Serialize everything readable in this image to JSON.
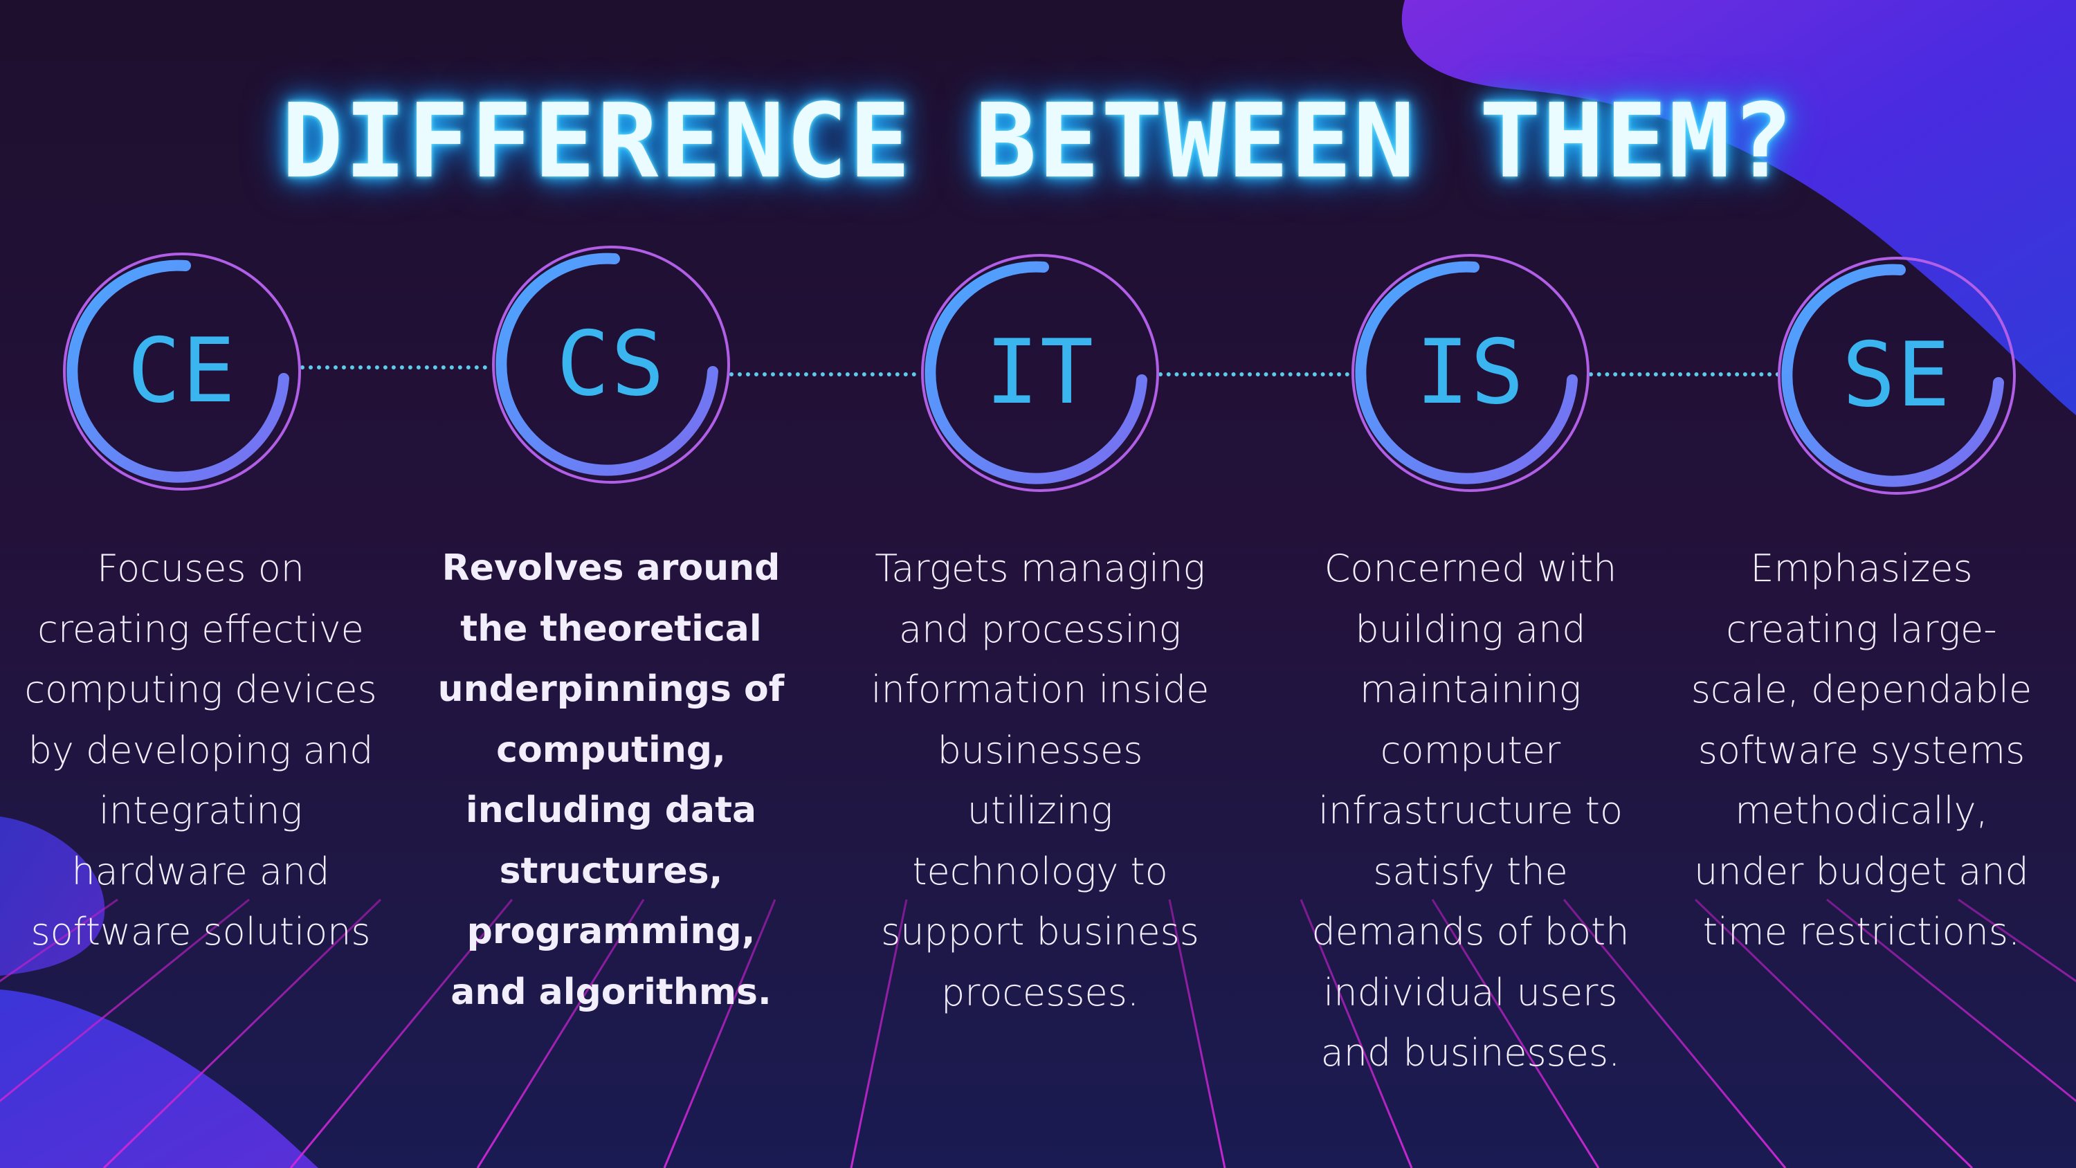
{
  "title": "DIFFERENCE BETWEEN THEM?",
  "colors": {
    "title_glow": "#35c6ff",
    "ring_outer": "#b15fe6",
    "ring_arc_start": "#4aa8ff",
    "ring_arc_end": "#7a6cf0",
    "abbr_text": "#3ab5f0",
    "connector": "#5ecbe8",
    "grid_line": "#b01fc4",
    "blob": "#4a2be0"
  },
  "fields": [
    {
      "abbr": "CE",
      "description": "Focuses on creating effective computing devices by developing and integrating hardware and software solutions"
    },
    {
      "abbr": "CS",
      "description": "Revolves around the theoretical underpinnings of computing, including data structures, programming, and algorithms."
    },
    {
      "abbr": "IT",
      "description": "Targets managing and processing information inside businesses utilizing technology to support business processes."
    },
    {
      "abbr": "IS",
      "description": "Concerned with building and maintaining computer infrastructure to satisfy the demands of both individual users and businesses."
    },
    {
      "abbr": "SE",
      "description": "Emphasizes creating large-scale, dependable software systems methodically, under budget and time restrictions."
    }
  ]
}
